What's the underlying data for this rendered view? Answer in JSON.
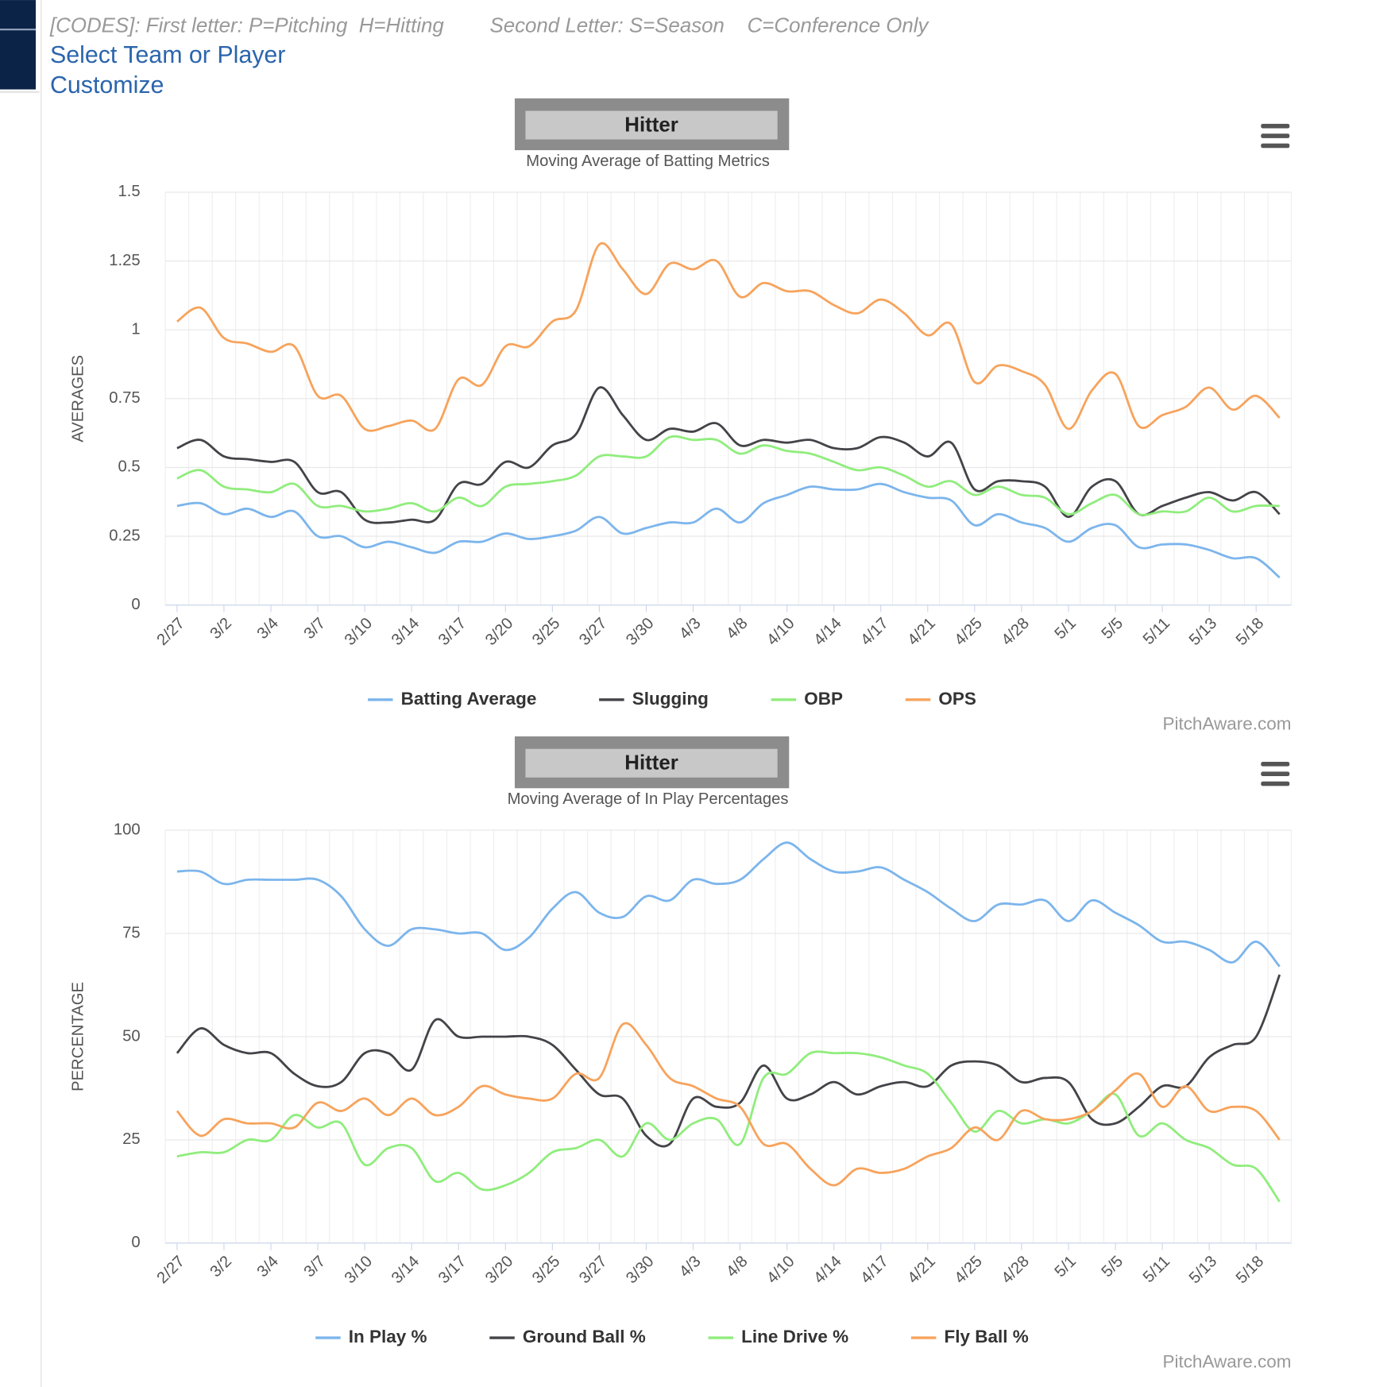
{
  "codes_primary": "[CODES]: First letter: P=Pitching  H=Hitting",
  "codes_secondary": "Second Letter: S=Season    C=Conference Only",
  "select_link": "Select Team or Player",
  "customize_link": "Customize",
  "chart_data": [
    {
      "type": "line",
      "title": "Hitter",
      "subtitle": "Moving Average of Batting Metrics",
      "y_label": "AVERAGES",
      "credit": "PitchAware.com",
      "categories": [
        "2/27",
        null,
        "3/2",
        null,
        "3/4",
        null,
        "3/7",
        null,
        "3/10",
        null,
        "3/14",
        null,
        "3/17",
        null,
        "3/20",
        null,
        "3/25",
        null,
        "3/27",
        null,
        "3/30",
        null,
        "4/3",
        null,
        "4/8",
        null,
        "4/10",
        null,
        "4/14",
        null,
        "4/17",
        null,
        "4/21",
        null,
        "4/25",
        null,
        "4/28",
        null,
        "5/1",
        null,
        "5/5",
        null,
        "5/11",
        null,
        "5/13",
        null,
        "5/18",
        null
      ],
      "ylim": [
        0,
        1.5
      ],
      "yticks": [
        0,
        0.25,
        0.5,
        0.75,
        1,
        1.25,
        1.5
      ],
      "grid": true,
      "legend": "bottom",
      "series": [
        {
          "name": "Batting Average",
          "color": "#7cb5ec",
          "values": [
            0.36,
            0.37,
            0.33,
            0.35,
            0.32,
            0.34,
            0.25,
            0.25,
            0.21,
            0.23,
            0.21,
            0.19,
            0.23,
            0.23,
            0.26,
            0.24,
            0.25,
            0.27,
            0.32,
            0.26,
            0.28,
            0.3,
            0.3,
            0.35,
            0.3,
            0.37,
            0.4,
            0.43,
            0.42,
            0.42,
            0.44,
            0.41,
            0.39,
            0.38,
            0.29,
            0.33,
            0.3,
            0.28,
            0.23,
            0.28,
            0.29,
            0.21,
            0.22,
            0.22,
            0.2,
            0.17,
            0.17,
            0.1
          ]
        },
        {
          "name": "Slugging",
          "color": "#434348",
          "values": [
            0.57,
            0.6,
            0.54,
            0.53,
            0.52,
            0.52,
            0.41,
            0.41,
            0.31,
            0.3,
            0.31,
            0.31,
            0.44,
            0.44,
            0.52,
            0.5,
            0.58,
            0.62,
            0.79,
            0.69,
            0.6,
            0.64,
            0.63,
            0.66,
            0.58,
            0.6,
            0.59,
            0.6,
            0.57,
            0.57,
            0.61,
            0.59,
            0.54,
            0.59,
            0.42,
            0.45,
            0.45,
            0.43,
            0.32,
            0.43,
            0.45,
            0.33,
            0.36,
            0.39,
            0.41,
            0.38,
            0.41,
            0.33
          ]
        },
        {
          "name": "OBP",
          "color": "#90ed7d",
          "values": [
            0.46,
            0.49,
            0.43,
            0.42,
            0.41,
            0.44,
            0.36,
            0.36,
            0.34,
            0.35,
            0.37,
            0.34,
            0.39,
            0.36,
            0.43,
            0.44,
            0.45,
            0.47,
            0.54,
            0.54,
            0.54,
            0.61,
            0.6,
            0.6,
            0.55,
            0.58,
            0.56,
            0.55,
            0.52,
            0.49,
            0.5,
            0.47,
            0.43,
            0.45,
            0.4,
            0.43,
            0.4,
            0.39,
            0.33,
            0.37,
            0.4,
            0.33,
            0.34,
            0.34,
            0.39,
            0.34,
            0.36,
            0.36
          ]
        },
        {
          "name": "OPS",
          "color": "#f7a35c",
          "values": [
            1.03,
            1.08,
            0.97,
            0.95,
            0.92,
            0.94,
            0.76,
            0.76,
            0.64,
            0.65,
            0.67,
            0.64,
            0.82,
            0.8,
            0.94,
            0.94,
            1.03,
            1.07,
            1.31,
            1.22,
            1.13,
            1.24,
            1.22,
            1.25,
            1.12,
            1.17,
            1.14,
            1.14,
            1.09,
            1.06,
            1.11,
            1.06,
            0.98,
            1.02,
            0.81,
            0.87,
            0.85,
            0.8,
            0.64,
            0.78,
            0.84,
            0.65,
            0.69,
            0.72,
            0.79,
            0.71,
            0.76,
            0.68
          ]
        }
      ]
    },
    {
      "type": "line",
      "title": "Hitter",
      "subtitle": "Moving Average of In Play Percentages",
      "y_label": "PERCENTAGE",
      "credit": "PitchAware.com",
      "categories": [
        "2/27",
        null,
        "3/2",
        null,
        "3/4",
        null,
        "3/7",
        null,
        "3/10",
        null,
        "3/14",
        null,
        "3/17",
        null,
        "3/20",
        null,
        "3/25",
        null,
        "3/27",
        null,
        "3/30",
        null,
        "4/3",
        null,
        "4/8",
        null,
        "4/10",
        null,
        "4/14",
        null,
        "4/17",
        null,
        "4/21",
        null,
        "4/25",
        null,
        "4/28",
        null,
        "5/1",
        null,
        "5/5",
        null,
        "5/11",
        null,
        "5/13",
        null,
        "5/18",
        null
      ],
      "ylim": [
        0,
        100
      ],
      "yticks": [
        0,
        25,
        50,
        75,
        100
      ],
      "grid": true,
      "legend": "bottom",
      "series": [
        {
          "name": "In Play %",
          "color": "#7cb5ec",
          "values": [
            90,
            90,
            87,
            88,
            88,
            88,
            88,
            84,
            76,
            72,
            76,
            76,
            75,
            75,
            71,
            74,
            81,
            85,
            80,
            79,
            84,
            83,
            88,
            87,
            88,
            93,
            97,
            93,
            90,
            90,
            91,
            88,
            85,
            81,
            78,
            82,
            82,
            83,
            78,
            83,
            80,
            77,
            73,
            73,
            71,
            68,
            73,
            67
          ]
        },
        {
          "name": "Ground Ball %",
          "color": "#434348",
          "values": [
            46,
            52,
            48,
            46,
            46,
            41,
            38,
            39,
            46,
            46,
            42,
            54,
            50,
            50,
            50,
            50,
            48,
            42,
            36,
            35,
            26,
            24,
            35,
            33,
            34,
            43,
            35,
            36,
            39,
            36,
            38,
            39,
            38,
            43,
            44,
            43,
            39,
            40,
            39,
            30,
            29,
            33,
            38,
            38,
            45,
            48,
            50,
            65
          ]
        },
        {
          "name": "Line Drive %",
          "color": "#90ed7d",
          "values": [
            21,
            22,
            22,
            25,
            25,
            31,
            28,
            29,
            19,
            23,
            23,
            15,
            17,
            13,
            14,
            17,
            22,
            23,
            25,
            21,
            29,
            25,
            29,
            30,
            24,
            40,
            41,
            46,
            46,
            46,
            45,
            43,
            41,
            34,
            27,
            32,
            29,
            30,
            29,
            32,
            36,
            26,
            29,
            25,
            23,
            19,
            18,
            10
          ]
        },
        {
          "name": "Fly Ball %",
          "color": "#f7a35c",
          "values": [
            32,
            26,
            30,
            29,
            29,
            28,
            34,
            32,
            35,
            31,
            35,
            31,
            33,
            38,
            36,
            35,
            35,
            41,
            40,
            53,
            48,
            40,
            38,
            35,
            33,
            24,
            24,
            18,
            14,
            18,
            17,
            18,
            21,
            23,
            28,
            25,
            32,
            30,
            30,
            32,
            37,
            41,
            33,
            38,
            32,
            33,
            32,
            25
          ]
        }
      ]
    }
  ]
}
